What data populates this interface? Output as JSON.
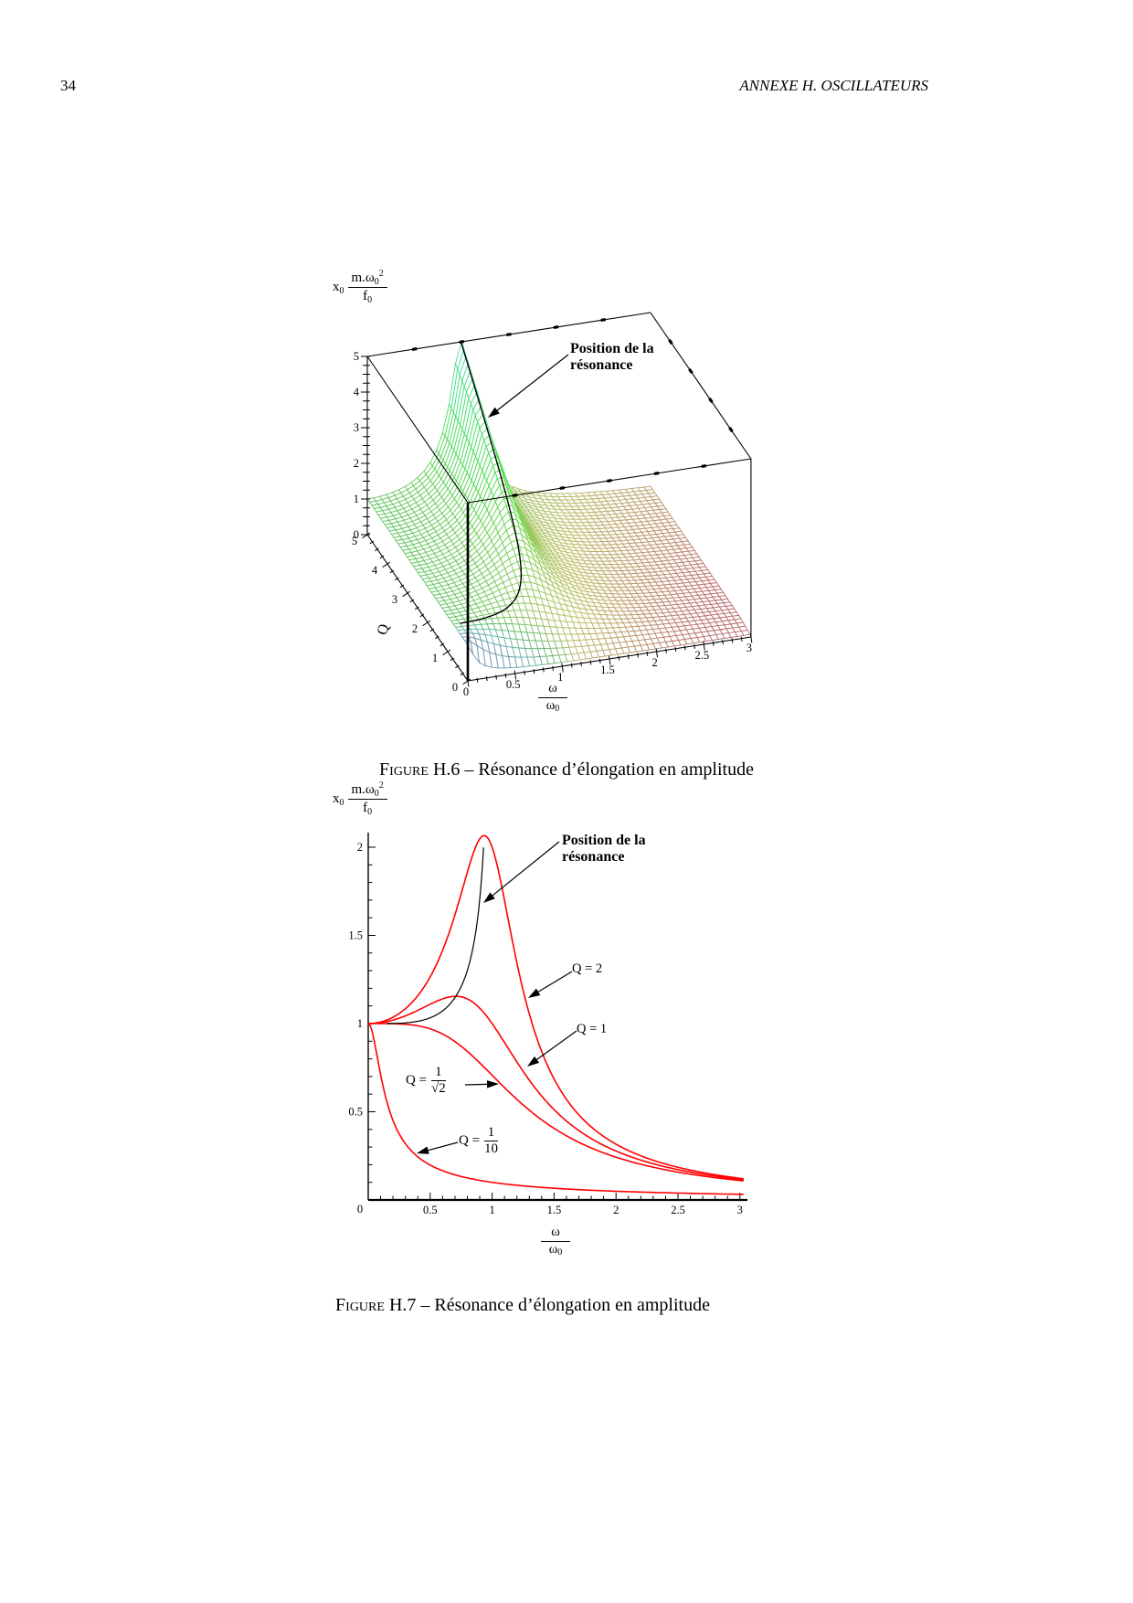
{
  "page": {
    "number": "34",
    "header": "ANNEXE H.  OSCILLATEURS",
    "background": "#ffffff"
  },
  "figure6": {
    "caption": {
      "prefix": "Figure",
      "rest": " H.6 – Résonance d’élongation en amplitude"
    },
    "zlabel": {
      "x_base": "x",
      "x_sub": "0",
      "num_base": "m.ω",
      "num_sub": "0",
      "num_sup": "2",
      "den_base": "f",
      "den_sub": "0"
    },
    "xlabel": {
      "num": "ω",
      "den_base": "ω",
      "den_sub": "0"
    },
    "q_axis_title": "Q",
    "annotation": {
      "line1": "Position de la",
      "line2": "résonance"
    }
  },
  "figure7": {
    "caption": {
      "prefix": "Figure",
      "rest": " H.7 – Résonance d’élongation en amplitude"
    },
    "zlabel": {
      "x_base": "x",
      "x_sub": "0",
      "num_base": "m.ω",
      "num_sub": "0",
      "num_sup": "2",
      "den_base": "f",
      "den_sub": "0"
    },
    "xlabel": {
      "num": "ω",
      "den_base": "ω",
      "den_sub": "0"
    },
    "annotation": {
      "line1": "Position de la",
      "line2": "résonance"
    },
    "curve_labels": {
      "q2": "Q = 2",
      "q1": "Q = 1",
      "qsqrt2": {
        "prefix": "Q =",
        "num": "1",
        "den": "√2"
      },
      "q10": {
        "prefix": "Q =",
        "num": "1",
        "den": "10"
      }
    }
  },
  "chart_data": [
    {
      "type": "surface3d",
      "title": "",
      "x_axis": {
        "label": "ω/ω₀",
        "range": [
          0,
          3
        ],
        "ticks": [
          0,
          0.5,
          1,
          1.5,
          2,
          2.5,
          3
        ],
        "minor_tick_step": 0.1
      },
      "y_axis": {
        "label": "Q",
        "range": [
          0,
          5
        ],
        "ticks": [
          0,
          1,
          2,
          3,
          4,
          5
        ],
        "minor_tick_step": 0.25
      },
      "z_axis": {
        "label": "x₀·m·ω₀²/f₀",
        "range": [
          0,
          5
        ],
        "ticks": [
          0,
          1,
          2,
          3,
          4,
          5
        ],
        "minor_tick_step": 0.25
      },
      "surface_function": "z = 1/sqrt((1-u²)² + (u/Q)²), u = ω/ω₀, clipped at z = 5",
      "resonance_ridge": "u = sqrt(1 - 1/(2Q²)), z = Q/sqrt(1 - 1/(4Q²)), for Q ≥ 1/√2",
      "annotation": "Position de la résonance",
      "style": {
        "mesh": "white-filled wireframe quads",
        "colormap": "green → cyan at resonance peak → yellow → orange → red toward high ω / low Q",
        "grid_divisions": 45
      }
    },
    {
      "type": "line",
      "title": "",
      "xlabel": "ω/ω₀",
      "ylabel": "x₀·m·ω₀²/f₀",
      "x_range": [
        0,
        3.05
      ],
      "y_range": [
        0,
        2.08
      ],
      "x_ticks": [
        0,
        0.5,
        1,
        1.5,
        2,
        2.5,
        3
      ],
      "y_ticks": [
        0,
        0.5,
        1,
        1.5,
        2
      ],
      "minor_tick_step": 0.1,
      "curve_formula": "y = 1/sqrt((1-x²)² + (x/Q)²)",
      "x_samples": [
        0,
        0.25,
        0.5,
        0.75,
        1,
        1.25,
        1.5,
        1.75,
        2,
        2.25,
        2.5,
        2.75,
        3
      ],
      "series": [
        {
          "name": "Q = 2",
          "Q": 2,
          "color": "#ff0000",
          "peak": {
            "x": 0.935,
            "y": 2.066
          },
          "values": [
            1,
            1.057,
            1.265,
            1.736,
            2.0,
            1.189,
            0.686,
            0.446,
            0.316,
            0.237,
            0.185,
            0.149,
            0.123
          ]
        },
        {
          "name": "Q = 1",
          "Q": 1,
          "color": "#ff0000",
          "peak": {
            "x": 0.707,
            "y": 1.155
          },
          "values": [
            1,
            1.031,
            1.109,
            1.152,
            1.0,
            0.73,
            0.512,
            0.37,
            0.277,
            0.215,
            0.172,
            0.141,
            0.117
          ]
        },
        {
          "name": "Q = 1/√2",
          "Q": 0.7071,
          "color": "#ff0000",
          "peak": {
            "x": 0,
            "y": 1
          },
          "values": [
            1,
            0.998,
            0.97,
            0.872,
            0.707,
            0.539,
            0.406,
            0.31,
            0.243,
            0.194,
            0.158,
            0.131,
            0.11
          ]
        },
        {
          "name": "Q = 1/10",
          "Q": 0.1,
          "color": "#ff0000",
          "peak": {
            "x": 0,
            "y": 1
          },
          "values": [
            1,
            0.375,
            0.198,
            0.133,
            0.1,
            0.08,
            0.066,
            0.057,
            0.049,
            0.044,
            0.039,
            0.035,
            0.032
          ]
        }
      ],
      "locus": {
        "name": "Position de la résonance",
        "color": "#000000",
        "formula": "x = sqrt(1 - 1/(2Q²)), y = Q/sqrt(1 - 1/(4Q²)), Q ∈ [0.71, 1.93]"
      }
    }
  ]
}
